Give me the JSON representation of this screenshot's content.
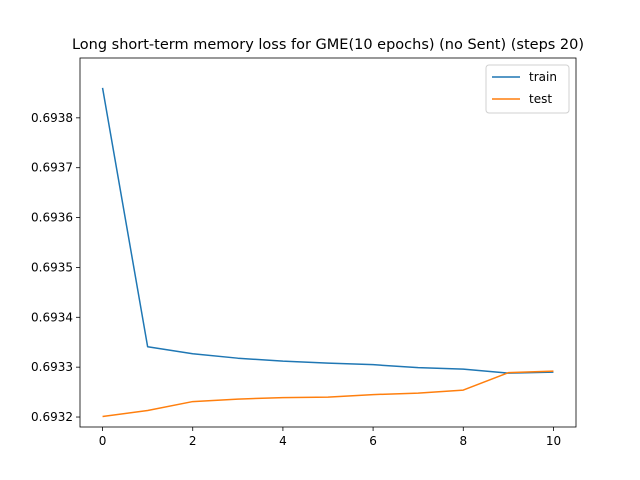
{
  "chart_data": {
    "type": "line",
    "title": "Long short-term memory loss for GME(10 epochs) (no Sent) (steps 20)",
    "xlabel": "",
    "ylabel": "",
    "xlim": [
      -0.5,
      10.5
    ],
    "ylim": [
      0.69318,
      0.69392
    ],
    "x_ticks": [
      0,
      2,
      4,
      6,
      8,
      10
    ],
    "y_ticks": [
      0.6932,
      0.6933,
      0.6934,
      0.6935,
      0.6936,
      0.6937,
      0.6938
    ],
    "grid": false,
    "legend_position": "top-right",
    "x": [
      0,
      1,
      2,
      3,
      4,
      5,
      6,
      7,
      8,
      9,
      10
    ],
    "series": [
      {
        "name": "train",
        "color": "#1f77b4",
        "values": [
          0.69386,
          0.693341,
          0.693327,
          0.693318,
          0.693312,
          0.693308,
          0.693305,
          0.693299,
          0.693296,
          0.693288,
          0.69329
        ]
      },
      {
        "name": "test",
        "color": "#ff7f0e",
        "values": [
          0.693201,
          0.693213,
          0.693231,
          0.693236,
          0.693239,
          0.69324,
          0.693245,
          0.693248,
          0.693254,
          0.693289,
          0.693292
        ]
      }
    ]
  }
}
